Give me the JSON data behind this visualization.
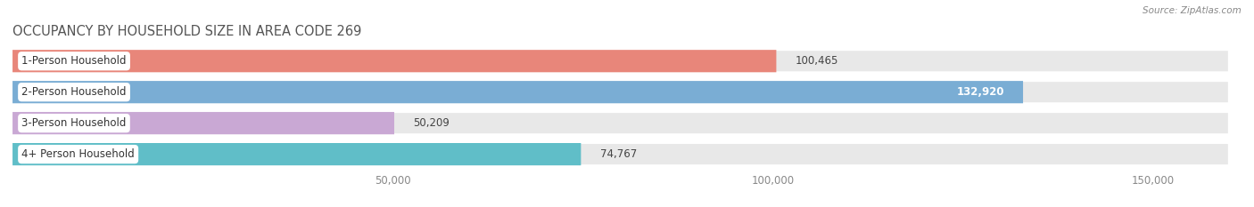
{
  "title": "OCCUPANCY BY HOUSEHOLD SIZE IN AREA CODE 269",
  "source": "Source: ZipAtlas.com",
  "categories": [
    "1-Person Household",
    "2-Person Household",
    "3-Person Household",
    "4+ Person Household"
  ],
  "values": [
    100465,
    132920,
    50209,
    74767
  ],
  "bar_colors": [
    "#e8867a",
    "#7aadd4",
    "#c9a8d4",
    "#60bec8"
  ],
  "value_label_inside": [
    false,
    true,
    false,
    false
  ],
  "background_color": "#f0f0f0",
  "bar_bg_color": "#e0e0e0",
  "row_bg_color": "#e8e8e8",
  "xlim": [
    0,
    160000
  ],
  "xticks": [
    50000,
    100000,
    150000
  ],
  "xtick_labels": [
    "50,000",
    "100,000",
    "150,000"
  ],
  "bar_height": 0.72,
  "title_fontsize": 10.5,
  "label_fontsize": 8.5,
  "value_fontsize": 8.5,
  "tick_fontsize": 8.5
}
